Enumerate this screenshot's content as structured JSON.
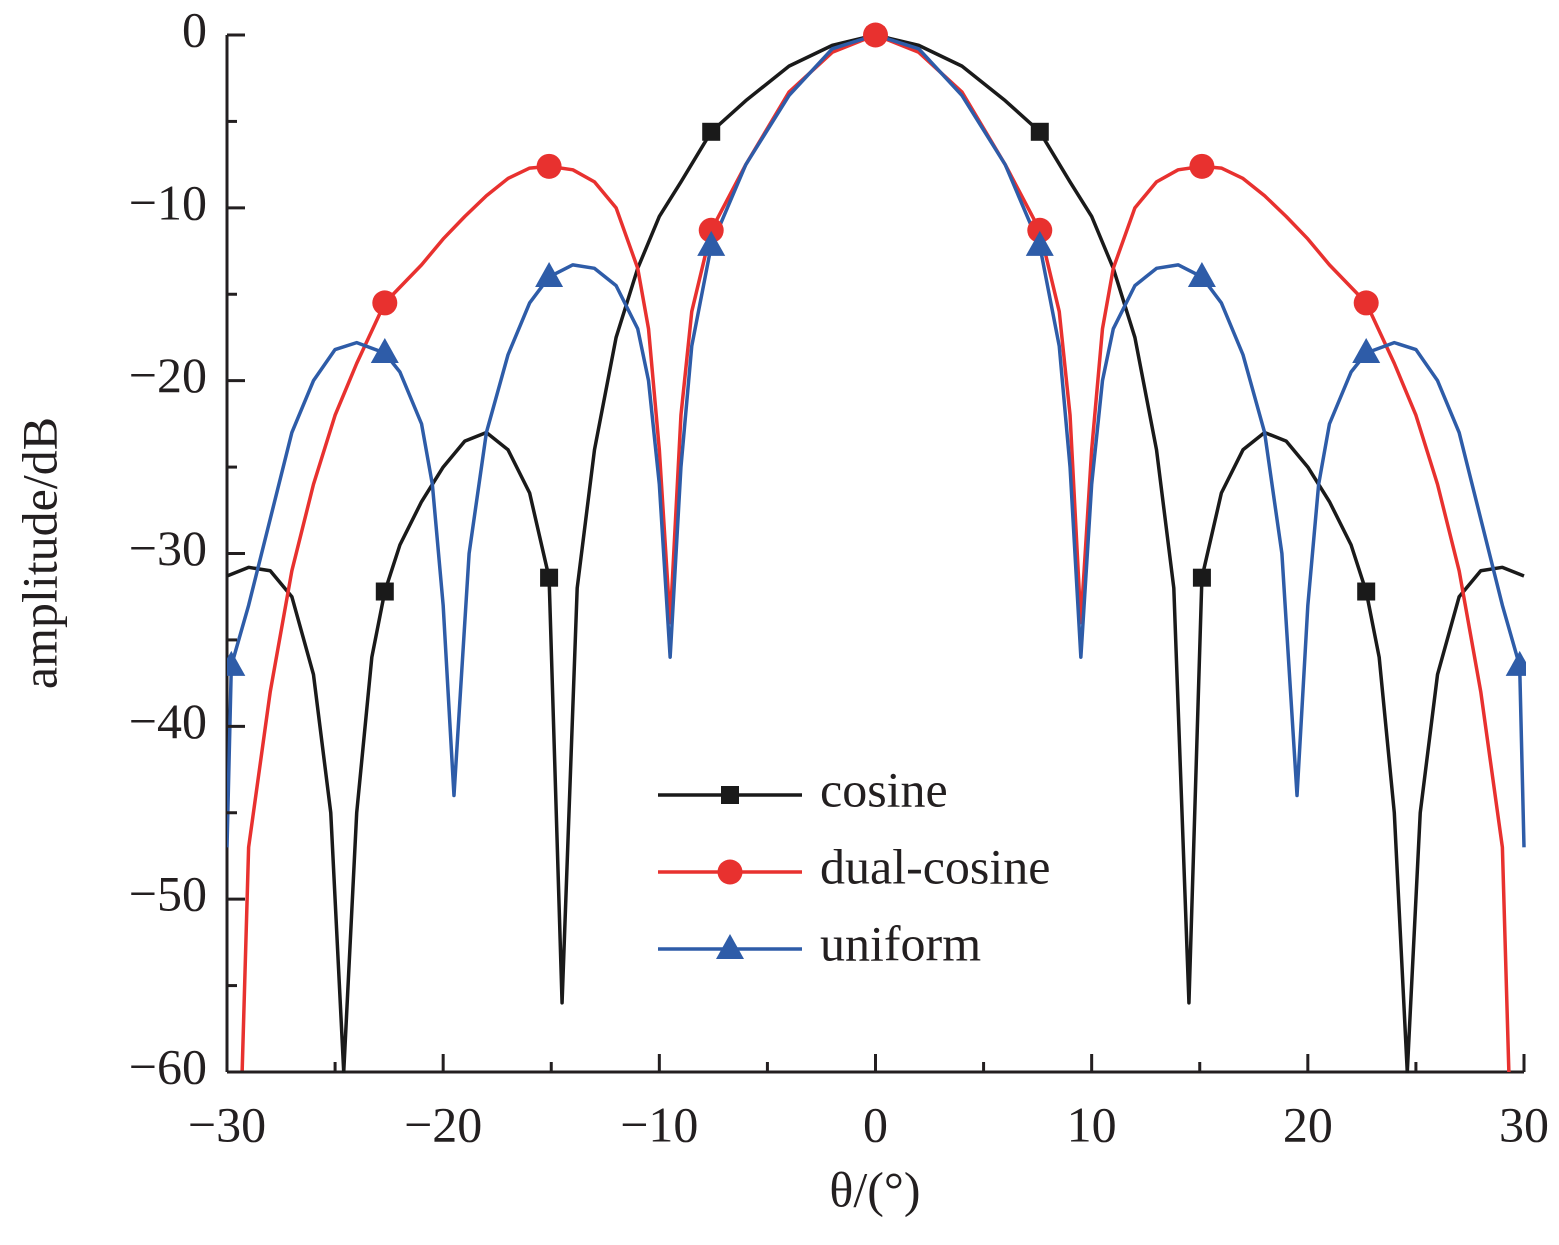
{
  "chart_data": {
    "type": "line",
    "xlabel": "θ/(°)",
    "ylabel": "amplitude/dB",
    "xlim": [
      -30,
      30
    ],
    "ylim": [
      -60,
      0
    ],
    "xticks": [
      {
        "value": -30,
        "label": "−30"
      },
      {
        "value": -20,
        "label": "−20"
      },
      {
        "value": -10,
        "label": "−10"
      },
      0,
      10,
      20,
      30
    ],
    "yticks": [
      0,
      {
        "value": -10,
        "label": "−10"
      },
      {
        "value": -20,
        "label": "−20"
      },
      {
        "value": -30,
        "label": "−30"
      },
      {
        "value": -40,
        "label": "−40"
      },
      {
        "value": -50,
        "label": "−50"
      },
      {
        "value": -60,
        "label": "−60"
      }
    ],
    "xminorticks": [
      -25,
      -15,
      -5,
      5,
      15,
      25
    ],
    "yminorticks": [
      -5,
      -15,
      -25,
      -35,
      -45,
      -55
    ],
    "series": [
      {
        "name": "cosine",
        "color": "#1a1a1a",
        "marker": "square",
        "x": [
          -30,
          -29,
          -28,
          -27,
          -26,
          -25.2,
          -24.6,
          -24,
          -23.3,
          -22.7,
          -22,
          -21,
          -20,
          -19,
          -18,
          -17,
          -16,
          -15.1,
          -14.5,
          -13.8,
          -13,
          -12,
          -11,
          -10,
          -9,
          -7.6,
          -6,
          -4,
          -2,
          0,
          2,
          4,
          6,
          7.6,
          9,
          10,
          11,
          12,
          13,
          13.8,
          14.5,
          15.1,
          16,
          17,
          18,
          19,
          20,
          21,
          22,
          22.7,
          23.3,
          24,
          24.6,
          25.2,
          26,
          27,
          28,
          29,
          30
        ],
        "values": [
          -31.3,
          -30.8,
          -31,
          -32.5,
          -37,
          -45,
          -60,
          -45,
          -36,
          -32.2,
          -29.5,
          -27,
          -25,
          -23.5,
          -23,
          -24,
          -26.5,
          -31.4,
          -56,
          -32,
          -24,
          -17.5,
          -13.5,
          -10.5,
          -8.5,
          -5.6,
          -3.8,
          -1.8,
          -0.6,
          0,
          -0.6,
          -1.8,
          -3.8,
          -5.6,
          -8.5,
          -10.5,
          -13.5,
          -17.5,
          -24,
          -32,
          -56,
          -31.4,
          -26.5,
          -24,
          -23,
          -23.5,
          -25,
          -27,
          -29.5,
          -32.2,
          -36,
          -45,
          -60,
          -45,
          -37,
          -32.5,
          -31,
          -30.8,
          -31.3
        ],
        "markers": {
          "x": [
            -22.7,
            -15.1,
            -7.6,
            0,
            7.6,
            15.1,
            22.7
          ],
          "values": [
            -32.2,
            -31.4,
            -5.6,
            0,
            -5.6,
            -31.4,
            -32.2
          ]
        }
      },
      {
        "name": "dual-cosine",
        "color": "#e8312f",
        "marker": "circle",
        "x": [
          -29.3,
          -29,
          -28,
          -27,
          -26,
          -25,
          -24,
          -22.7,
          -21,
          -20,
          -19,
          -18,
          -17,
          -16,
          -15.1,
          -14,
          -13,
          -12,
          -11,
          -10.5,
          -10,
          -9.5,
          -9,
          -8.5,
          -7.6,
          -6,
          -4,
          -2,
          0,
          2,
          4,
          6,
          7.6,
          8.5,
          9,
          9.5,
          10,
          10.5,
          11,
          12,
          13,
          14,
          15.1,
          16,
          17,
          18,
          19,
          20,
          21,
          22.7,
          24,
          25,
          26,
          27,
          28,
          29,
          29.3
        ],
        "values": [
          -60,
          -47,
          -38,
          -31,
          -26,
          -22,
          -19,
          -15.5,
          -13.3,
          -11.8,
          -10.5,
          -9.3,
          -8.3,
          -7.7,
          -7.6,
          -7.8,
          -8.5,
          -10,
          -13.5,
          -17,
          -24,
          -34,
          -22,
          -16,
          -11.3,
          -7.5,
          -3.3,
          -1,
          0,
          -1,
          -3.3,
          -7.5,
          -11.3,
          -16,
          -22,
          -34,
          -24,
          -17,
          -13.5,
          -10,
          -8.5,
          -7.8,
          -7.6,
          -7.7,
          -8.3,
          -9.3,
          -10.5,
          -11.8,
          -13.3,
          -15.5,
          -19,
          -22,
          -26,
          -31,
          -38,
          -47,
          -60
        ],
        "markers": {
          "x": [
            -22.7,
            -15.1,
            -7.6,
            0,
            7.6,
            15.1,
            22.7
          ],
          "values": [
            -15.5,
            -7.6,
            -11.3,
            0,
            -11.3,
            -7.6,
            -15.5
          ]
        }
      },
      {
        "name": "uniform",
        "color": "#2e5ca8",
        "marker": "triangle",
        "x": [
          -30,
          -29.8,
          -29,
          -28,
          -27,
          -26,
          -25,
          -24,
          -22.7,
          -22,
          -21,
          -20.5,
          -20,
          -19.5,
          -18.8,
          -18,
          -17,
          -16,
          -15.1,
          -14,
          -13,
          -12,
          -11,
          -10.5,
          -10,
          -9.5,
          -9,
          -8.5,
          -7.6,
          -6,
          -4,
          -2,
          0,
          2,
          4,
          6,
          7.6,
          8.5,
          9,
          9.5,
          10,
          10.5,
          11,
          12,
          13,
          14,
          15.1,
          16,
          17,
          18,
          18.8,
          19.5,
          20,
          20.5,
          21,
          22,
          22.7,
          24,
          25,
          26,
          27,
          28,
          29,
          29.8,
          30
        ],
        "values": [
          -47,
          -36.5,
          -33,
          -28,
          -23,
          -20,
          -18.2,
          -17.8,
          -18.4,
          -19.5,
          -22.5,
          -26,
          -33,
          -44,
          -30,
          -23,
          -18.5,
          -15.5,
          -14,
          -13.3,
          -13.5,
          -14.5,
          -17,
          -20,
          -26,
          -36,
          -25,
          -18,
          -12.2,
          -7.5,
          -3.5,
          -0.8,
          0,
          -0.8,
          -3.5,
          -7.5,
          -12.2,
          -18,
          -25,
          -36,
          -26,
          -20,
          -17,
          -14.5,
          -13.5,
          -13.3,
          -14,
          -15.5,
          -18.5,
          -23,
          -30,
          -44,
          -33,
          -26,
          -22.5,
          -19.5,
          -18.4,
          -17.8,
          -18.2,
          -20,
          -23,
          -28,
          -33,
          -36.5,
          -47
        ],
        "markers": {
          "x": [
            -29.8,
            -22.7,
            -15.1,
            -7.6,
            7.6,
            15.1,
            22.7,
            29.8
          ],
          "values": [
            -36.5,
            -18.4,
            -14,
            -12.2,
            -12.2,
            -14,
            -18.4,
            -36.5
          ]
        }
      }
    ]
  }
}
